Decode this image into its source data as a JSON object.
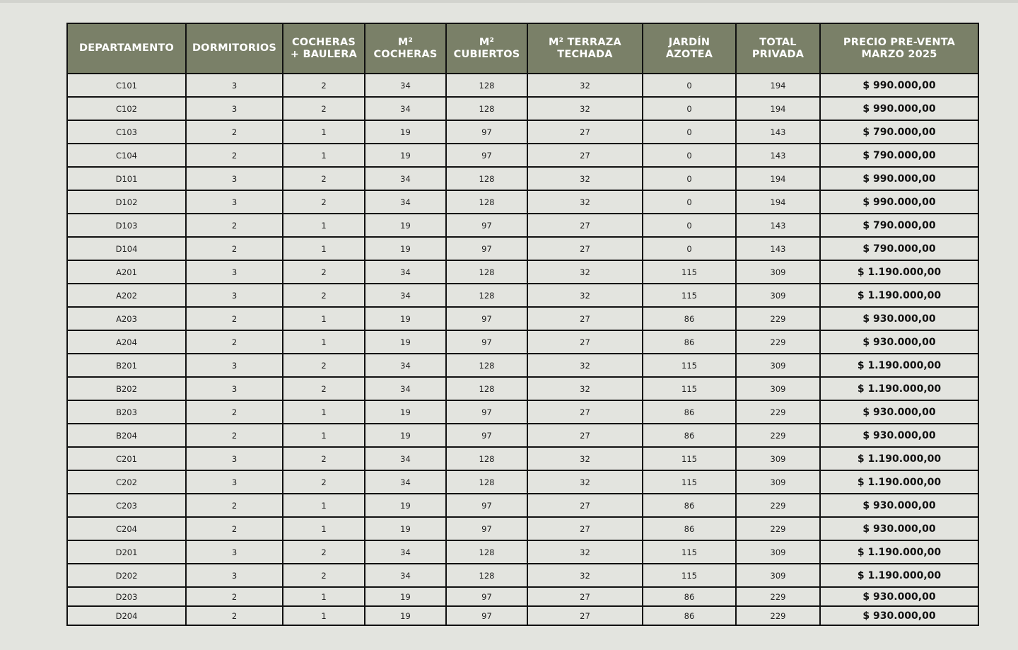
{
  "headers": [
    [
      "DEPARTAMENTO",
      ""
    ],
    [
      "DORMITORIOS",
      ""
    ],
    [
      "COCHERAS",
      "+ BAULERA"
    ],
    [
      "M²",
      "COCHERAS"
    ],
    [
      "M²",
      "CUBIERTOS"
    ],
    [
      "M² TERRAZA",
      "TECHADA"
    ],
    [
      "JARDÍN",
      "AZOTEA"
    ],
    [
      "TOTAL",
      "PRIVADA"
    ],
    [
      "PRECIO PRE-VENTA",
      "MARZO 2025"
    ]
  ],
  "rows": [
    [
      "C101",
      "3",
      "2",
      "34",
      "128",
      "32",
      "0",
      "194",
      "$ 990.000,00"
    ],
    [
      "C102",
      "3",
      "2",
      "34",
      "128",
      "32",
      "0",
      "194",
      "$ 990.000,00"
    ],
    [
      "C103",
      "2",
      "1",
      "19",
      "97",
      "27",
      "0",
      "143",
      "$ 790.000,00"
    ],
    [
      "C104",
      "2",
      "1",
      "19",
      "97",
      "27",
      "0",
      "143",
      "$ 790.000,00"
    ],
    [
      "D101",
      "3",
      "2",
      "34",
      "128",
      "32",
      "0",
      "194",
      "$ 990.000,00"
    ],
    [
      "D102",
      "3",
      "2",
      "34",
      "128",
      "32",
      "0",
      "194",
      "$ 990.000,00"
    ],
    [
      "D103",
      "2",
      "1",
      "19",
      "97",
      "27",
      "0",
      "143",
      "$ 790.000,00"
    ],
    [
      "D104",
      "2",
      "1",
      "19",
      "97",
      "27",
      "0",
      "143",
      "$ 790.000,00"
    ],
    [
      "A201",
      "3",
      "2",
      "34",
      "128",
      "32",
      "115",
      "309",
      "$ 1.190.000,00"
    ],
    [
      "A202",
      "3",
      "2",
      "34",
      "128",
      "32",
      "115",
      "309",
      "$ 1.190.000,00"
    ],
    [
      "A203",
      "2",
      "1",
      "19",
      "97",
      "27",
      "86",
      "229",
      "$ 930.000,00"
    ],
    [
      "A204",
      "2",
      "1",
      "19",
      "97",
      "27",
      "86",
      "229",
      "$ 930.000,00"
    ],
    [
      "B201",
      "3",
      "2",
      "34",
      "128",
      "32",
      "115",
      "309",
      "$ 1.190.000,00"
    ],
    [
      "B202",
      "3",
      "2",
      "34",
      "128",
      "32",
      "115",
      "309",
      "$ 1.190.000,00"
    ],
    [
      "B203",
      "2",
      "1",
      "19",
      "97",
      "27",
      "86",
      "229",
      "$ 930.000,00"
    ],
    [
      "B204",
      "2",
      "1",
      "19",
      "97",
      "27",
      "86",
      "229",
      "$ 930.000,00"
    ],
    [
      "C201",
      "3",
      "2",
      "34",
      "128",
      "32",
      "115",
      "309",
      "$ 1.190.000,00"
    ],
    [
      "C202",
      "3",
      "2",
      "34",
      "128",
      "32",
      "115",
      "309",
      "$ 1.190.000,00"
    ],
    [
      "C203",
      "2",
      "1",
      "19",
      "97",
      "27",
      "86",
      "229",
      "$ 930.000,00"
    ],
    [
      "C204",
      "2",
      "1",
      "19",
      "97",
      "27",
      "86",
      "229",
      "$ 930.000,00"
    ],
    [
      "D201",
      "3",
      "2",
      "34",
      "128",
      "32",
      "115",
      "309",
      "$ 1.190.000,00"
    ],
    [
      "D202",
      "3",
      "2",
      "34",
      "128",
      "32",
      "115",
      "309",
      "$ 1.190.000,00"
    ],
    [
      "D203",
      "2",
      "1",
      "19",
      "97",
      "27",
      "86",
      "229",
      "$ 930.000,00"
    ],
    [
      "D204",
      "2",
      "1",
      "19",
      "97",
      "27",
      "86",
      "229",
      "$ 930.000,00"
    ]
  ],
  "colors": {
    "header_bg": "#7a8068",
    "page_bg": "#e3e4df"
  }
}
